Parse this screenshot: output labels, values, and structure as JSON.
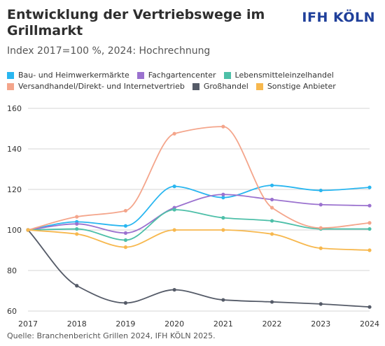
{
  "header": {
    "title": "Entwicklung der Vertriebswege im Grillmarkt",
    "brand": "IFH KÖLN",
    "subtitle": "Index 2017=100 %, 2024: Hochrechnung"
  },
  "footer": {
    "source": "Quelle: Branchenbericht Grillen 2024, IFH KÖLN 2025."
  },
  "chart_data": {
    "type": "line",
    "title": "Entwicklung der Vertriebswege im Grillmarkt",
    "subtitle": "Index 2017=100 %, 2024: Hochrechnung",
    "x": [
      "2017",
      "2018",
      "2019",
      "2020",
      "2021",
      "2022",
      "2023",
      "2024"
    ],
    "ylim": [
      60,
      160
    ],
    "yticks": [
      60,
      80,
      100,
      120,
      140,
      160
    ],
    "grid": "horizontal",
    "legend": "top",
    "smooth": true,
    "series": [
      {
        "name": "Bau- und Heimwerkermärkte",
        "color": "#29b6f0",
        "values": [
          100,
          104,
          102,
          121.5,
          116,
          122,
          119.5,
          121
        ]
      },
      {
        "name": "Fachgartencenter",
        "color": "#9b72cf",
        "values": [
          100,
          103,
          98.5,
          111,
          117.5,
          115,
          112.5,
          112
        ]
      },
      {
        "name": "Lebensmitteleinzelhandel",
        "color": "#4dbfa8",
        "values": [
          100,
          100.5,
          95,
          110,
          106,
          104.5,
          100.5,
          100.5
        ]
      },
      {
        "name": "Versandhandel/Direkt- und Internetvertrieb",
        "color": "#f4a58b",
        "values": [
          100,
          106.5,
          109.5,
          147.5,
          151,
          111,
          101,
          103.5
        ]
      },
      {
        "name": "Großhandel",
        "color": "#555b68",
        "values": [
          100,
          72.5,
          64,
          70.5,
          65.5,
          64.5,
          63.5,
          62
        ]
      },
      {
        "name": "Sonstige Anbieter",
        "color": "#f7b84e",
        "values": [
          100,
          98,
          91.5,
          100,
          100,
          98,
          91,
          90
        ]
      }
    ]
  }
}
